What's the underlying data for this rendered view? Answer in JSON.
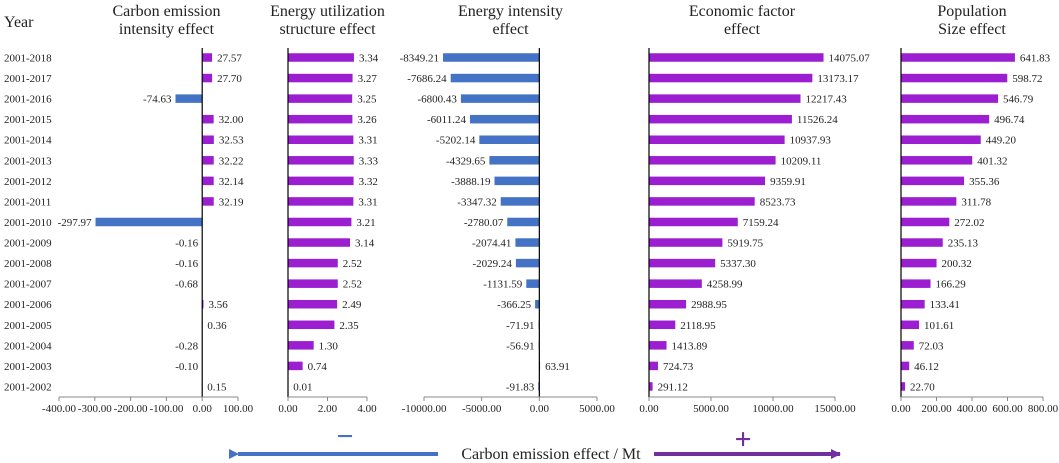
{
  "colors": {
    "positive": "#9b1fd1",
    "negative": "#4472c4",
    "axis": "#000000",
    "text": "#222222"
  },
  "footer": {
    "label": "Carbon emission effect / Mt",
    "minus_symbol": "−",
    "plus_symbol": "+"
  },
  "chart_data": {
    "type": "bar",
    "orientation": "horizontal",
    "y_title": "Year",
    "categories": [
      "2001-2018",
      "2001-2017",
      "2001-2016",
      "2001-2015",
      "2001-2014",
      "2001-2013",
      "2001-2012",
      "2001-2011",
      "2001-2010",
      "2001-2009",
      "2001-2008",
      "2001-2007",
      "2001-2006",
      "2001-2005",
      "2001-2004",
      "2001-2003",
      "2001-2002"
    ],
    "panels": [
      {
        "title": [
          "Carbon emission",
          "intensity effect"
        ],
        "xlim": [
          -400,
          100
        ],
        "ticks": [
          -400,
          -300,
          -200,
          -100,
          0,
          100
        ],
        "tick_labels": [
          "-400.00",
          "-300.00",
          "-200.00",
          "-100.00",
          "0.00",
          "100.00"
        ],
        "values": [
          27.57,
          27.7,
          -74.63,
          32.0,
          32.53,
          32.22,
          32.14,
          32.19,
          -297.97,
          -0.16,
          -0.16,
          -0.68,
          3.56,
          0.36,
          -0.28,
          -0.1,
          0.15
        ],
        "labels": [
          "27.57",
          "27.70",
          "-74.63",
          "32.00",
          "32.53",
          "32.22",
          "32.14",
          "32.19",
          "-297.97",
          "-0.16",
          "-0.16",
          "-0.68",
          "3.56",
          "0.36",
          "-0.28",
          "-0.10",
          "0.15"
        ]
      },
      {
        "title": [
          "Energy utilization",
          "structure effect"
        ],
        "xlim": [
          0,
          4
        ],
        "ticks": [
          0,
          2,
          4
        ],
        "tick_labels": [
          "0.00",
          "2.00",
          "4.00"
        ],
        "values": [
          3.34,
          3.27,
          3.25,
          3.26,
          3.31,
          3.33,
          3.32,
          3.31,
          3.21,
          3.14,
          2.52,
          2.52,
          2.49,
          2.35,
          1.3,
          0.74,
          0.01
        ],
        "labels": [
          "3.34",
          "3.27",
          "3.25",
          "3.26",
          "3.31",
          "3.33",
          "3.32",
          "3.31",
          "3.21",
          "3.14",
          "2.52",
          "2.52",
          "2.49",
          "2.35",
          "1.30",
          "0.74",
          "0.01"
        ]
      },
      {
        "title": [
          "Energy intensity",
          "effect"
        ],
        "xlim": [
          -10000,
          5000
        ],
        "ticks": [
          -10000,
          -5000,
          0,
          5000
        ],
        "tick_labels": [
          "-10000.00",
          "-5000.00",
          "0.00",
          "5000.00"
        ],
        "values": [
          -8349.21,
          -7686.24,
          -6800.43,
          -6011.24,
          -5202.14,
          -4329.65,
          -3888.19,
          -3347.32,
          -2780.07,
          -2074.41,
          -2029.24,
          -1131.59,
          -366.25,
          -71.91,
          -56.91,
          63.91,
          -91.83
        ],
        "labels": [
          "-8349.21",
          "-7686.24",
          "-6800.43",
          "-6011.24",
          "-5202.14",
          "-4329.65",
          "-3888.19",
          "-3347.32",
          "-2780.07",
          "-2074.41",
          "-2029.24",
          "-1131.59",
          "-366.25",
          "-71.91",
          "-56.91",
          "63.91",
          "-91.83"
        ]
      },
      {
        "title": [
          "Economic factor",
          "effect"
        ],
        "xlim": [
          0,
          15000
        ],
        "ticks": [
          0,
          5000,
          10000,
          15000
        ],
        "tick_labels": [
          "0.00",
          "5000.00",
          "10000.00",
          "15000.00"
        ],
        "values": [
          14075.07,
          13173.17,
          12217.43,
          11526.24,
          10937.93,
          10209.11,
          9359.91,
          8523.73,
          7159.24,
          5919.75,
          5337.3,
          4258.99,
          2988.95,
          2118.95,
          1413.89,
          724.73,
          291.12
        ],
        "labels": [
          "14075.07",
          "13173.17",
          "12217.43",
          "11526.24",
          "10937.93",
          "10209.11",
          "9359.91",
          "8523.73",
          "7159.24",
          "5919.75",
          "5337.30",
          "4258.99",
          "2988.95",
          "2118.95",
          "1413.89",
          "724.73",
          "291.12"
        ]
      },
      {
        "title": [
          "Population",
          "Size effect"
        ],
        "xlim": [
          0,
          800
        ],
        "ticks": [
          0,
          200,
          400,
          600,
          800
        ],
        "tick_labels": [
          "0.00",
          "200.00",
          "400.00",
          "600.00",
          "800.00"
        ],
        "values": [
          641.83,
          598.72,
          546.79,
          496.74,
          449.2,
          401.32,
          355.36,
          311.78,
          272.02,
          235.13,
          200.32,
          166.29,
          133.41,
          101.61,
          72.03,
          46.12,
          22.7
        ],
        "labels": [
          "641.83",
          "598.72",
          "546.79",
          "496.74",
          "449.20",
          "401.32",
          "355.36",
          "311.78",
          "272.02",
          "235.13",
          "200.32",
          "166.29",
          "133.41",
          "101.61",
          "72.03",
          "46.12",
          "22.70"
        ]
      }
    ]
  }
}
